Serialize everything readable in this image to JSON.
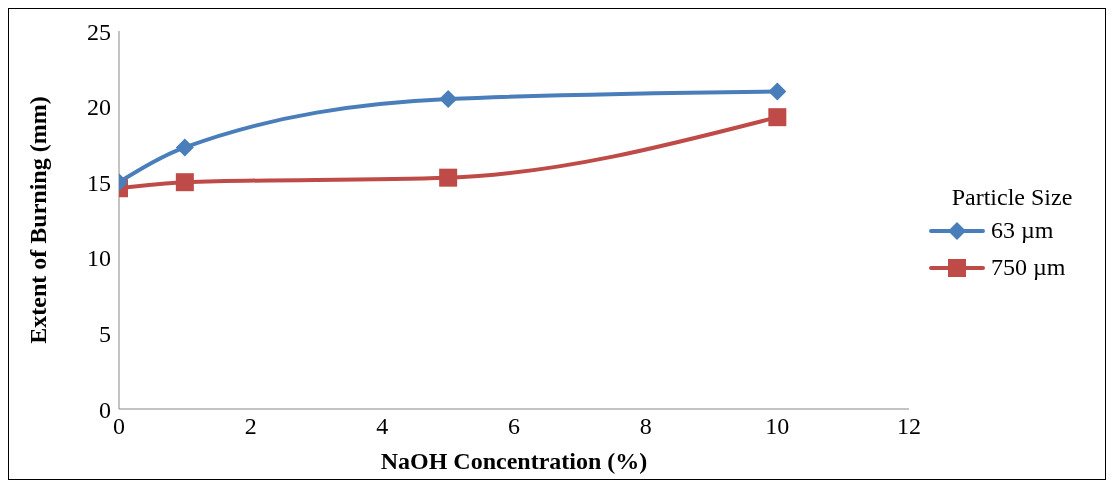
{
  "chart_data": {
    "type": "line",
    "xlabel": "NaOH Concentration (%)",
    "ylabel": "Extent of Burning (mm)",
    "legend_title": "Particle Size",
    "x": [
      0,
      1,
      5,
      10
    ],
    "series": [
      {
        "name": "63 µm",
        "color": "#4a7ebb",
        "values": [
          15,
          17.3,
          20.5,
          21
        ],
        "marker": "diamond"
      },
      {
        "name": "750 µm",
        "color": "#be4b48",
        "values": [
          14.6,
          15,
          15.3,
          19.3
        ],
        "marker": "square"
      }
    ],
    "xlim": [
      0,
      12
    ],
    "xticks": [
      0,
      2,
      4,
      6,
      8,
      10,
      12
    ],
    "ylim": [
      0,
      25
    ],
    "yticks": [
      0,
      5,
      10,
      15,
      20,
      25
    ],
    "grid": false,
    "legend": "right",
    "line_style": "solid"
  }
}
